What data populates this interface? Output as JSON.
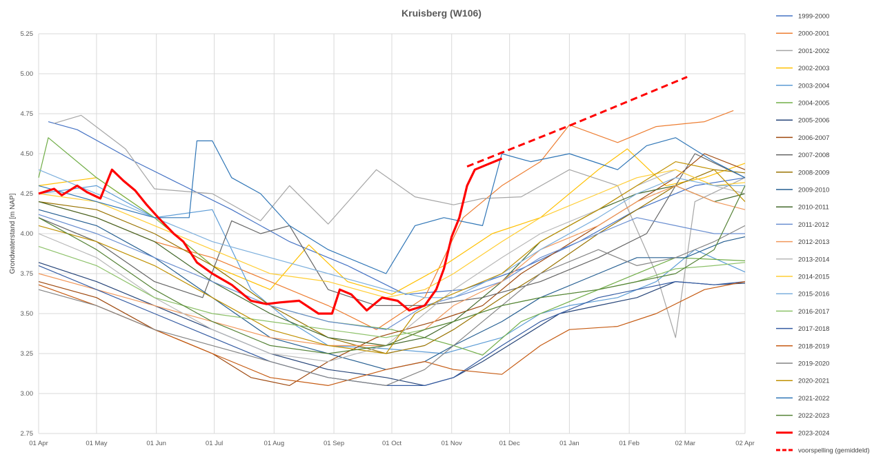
{
  "chart_data": {
    "type": "line",
    "title": "Kruisberg (W106)",
    "xlabel": "",
    "ylabel": "Grondwaterstand [m NAP]",
    "ylim": [
      2.75,
      5.25
    ],
    "yticks": [
      "5.25",
      "5.00",
      "4.75",
      "4.50",
      "4.25",
      "4.00",
      "3.75",
      "3.50",
      "3.25",
      "3.00",
      "2.75"
    ],
    "xlim_days": [
      0,
      366
    ],
    "xticks": [
      {
        "day": 0,
        "label": "01 Apr"
      },
      {
        "day": 30,
        "label": "01 May"
      },
      {
        "day": 61,
        "label": "01 Jun"
      },
      {
        "day": 91,
        "label": "01 Jul"
      },
      {
        "day": 122,
        "label": "01 Aug"
      },
      {
        "day": 153,
        "label": "01 Sep"
      },
      {
        "day": 183,
        "label": "01 Oct"
      },
      {
        "day": 214,
        "label": "01 Nov"
      },
      {
        "day": 244,
        "label": "01 Dec"
      },
      {
        "day": 275,
        "label": "01 Jan"
      },
      {
        "day": 306,
        "label": "01 Feb"
      },
      {
        "day": 335,
        "label": "02 Mar"
      },
      {
        "day": 366,
        "label": "02 Apr"
      }
    ],
    "grid": true,
    "legend_position": "right",
    "series": [
      {
        "name": "1999-2000",
        "color": "#4472C4",
        "dash": false,
        "width": 1.2,
        "x": [
          5,
          20,
          50,
          75,
          100,
          130,
          160,
          190,
          220,
          250,
          280,
          310,
          340,
          366
        ],
        "y": [
          4.7,
          4.65,
          4.45,
          4.3,
          4.15,
          3.95,
          3.8,
          3.62,
          3.65,
          3.78,
          3.95,
          4.15,
          4.3,
          4.35
        ]
      },
      {
        "name": "2000-2001",
        "color": "#ED7D31",
        "dash": false,
        "width": 1.2,
        "x": [
          0,
          30,
          60,
          90,
          120,
          150,
          175,
          200,
          220,
          240,
          260,
          275,
          300,
          320,
          345,
          360
        ],
        "y": [
          4.2,
          4.1,
          3.95,
          3.85,
          3.7,
          3.55,
          3.4,
          3.6,
          4.1,
          4.3,
          4.45,
          4.68,
          4.57,
          4.67,
          4.7,
          4.77
        ]
      },
      {
        "name": "2001-2002",
        "color": "#A5A5A5",
        "dash": false,
        "width": 1.2,
        "x": [
          8,
          22,
          45,
          60,
          90,
          115,
          130,
          150,
          175,
          195,
          215,
          230,
          250,
          275,
          300,
          320,
          330,
          340,
          366
        ],
        "y": [
          4.69,
          4.74,
          4.53,
          4.28,
          4.25,
          4.08,
          4.3,
          4.06,
          4.4,
          4.23,
          4.18,
          4.22,
          4.23,
          4.4,
          4.3,
          3.75,
          3.35,
          4.2,
          4.35
        ]
      },
      {
        "name": "2002-2003",
        "color": "#FFC000",
        "dash": false,
        "width": 1.2,
        "x": [
          0,
          30,
          60,
          90,
          120,
          140,
          160,
          183,
          210,
          235,
          260,
          290,
          305,
          325,
          345,
          366
        ],
        "y": [
          4.3,
          4.35,
          4.1,
          3.8,
          3.65,
          3.93,
          3.7,
          3.62,
          3.8,
          4.0,
          4.1,
          4.4,
          4.53,
          4.3,
          4.35,
          4.44
        ]
      },
      {
        "name": "2003-2004",
        "color": "#5B9BD5",
        "dash": false,
        "width": 1.2,
        "x": [
          0,
          30,
          60,
          90,
          110,
          130,
          150,
          180,
          210,
          240,
          260,
          275,
          300,
          320,
          340,
          366
        ],
        "y": [
          4.25,
          4.3,
          4.1,
          4.15,
          3.65,
          3.45,
          3.3,
          3.28,
          3.25,
          3.35,
          3.5,
          3.55,
          3.6,
          3.7,
          3.9,
          3.76
        ]
      },
      {
        "name": "2004-2005",
        "color": "#70AD47",
        "dash": false,
        "width": 1.2,
        "x": [
          0,
          5,
          30,
          60,
          90,
          120,
          150,
          183,
          200,
          215,
          230,
          250,
          270,
          300,
          330,
          366
        ],
        "y": [
          4.35,
          4.6,
          4.35,
          4.1,
          3.8,
          3.55,
          3.45,
          3.4,
          3.35,
          3.3,
          3.24,
          3.45,
          3.55,
          3.7,
          3.85,
          3.83
        ]
      },
      {
        "name": "2005-2006",
        "color": "#264478",
        "dash": false,
        "width": 1.2,
        "x": [
          0,
          30,
          60,
          90,
          120,
          150,
          180,
          200,
          215,
          230,
          250,
          270,
          290,
          310,
          330,
          350,
          366
        ],
        "y": [
          3.82,
          3.7,
          3.55,
          3.4,
          3.25,
          3.15,
          3.1,
          3.05,
          3.1,
          3.2,
          3.35,
          3.5,
          3.55,
          3.6,
          3.7,
          3.68,
          3.69
        ]
      },
      {
        "name": "2006-2007",
        "color": "#9E480E",
        "dash": false,
        "width": 1.2,
        "x": [
          0,
          30,
          60,
          90,
          110,
          130,
          150,
          175,
          190,
          205,
          230,
          250,
          270,
          290,
          310,
          330,
          345,
          366
        ],
        "y": [
          3.7,
          3.6,
          3.4,
          3.25,
          3.1,
          3.05,
          3.2,
          3.35,
          3.4,
          3.45,
          3.55,
          3.75,
          3.9,
          4.05,
          4.2,
          4.35,
          4.5,
          4.4
        ]
      },
      {
        "name": "2007-2008",
        "color": "#636363",
        "dash": false,
        "width": 1.2,
        "x": [
          0,
          30,
          60,
          85,
          100,
          115,
          130,
          150,
          175,
          200,
          230,
          260,
          290,
          315,
          340,
          366
        ],
        "y": [
          4.1,
          3.95,
          3.7,
          3.6,
          4.08,
          4.0,
          4.05,
          3.65,
          3.55,
          3.55,
          3.6,
          3.7,
          3.85,
          4.0,
          4.5,
          4.35
        ]
      },
      {
        "name": "2008-2009",
        "color": "#997300",
        "dash": false,
        "width": 1.2,
        "x": [
          0,
          30,
          60,
          90,
          120,
          150,
          180,
          200,
          215,
          240,
          260,
          290,
          310,
          330,
          350,
          366
        ],
        "y": [
          4.2,
          4.15,
          4.0,
          3.8,
          3.55,
          3.35,
          3.25,
          3.3,
          3.4,
          3.6,
          3.75,
          4.0,
          4.15,
          4.3,
          4.4,
          4.38
        ]
      },
      {
        "name": "2009-2010",
        "color": "#255E91",
        "dash": false,
        "width": 1.2,
        "x": [
          0,
          30,
          60,
          90,
          120,
          150,
          180,
          200,
          215,
          240,
          260,
          290,
          310,
          335,
          355,
          366
        ],
        "y": [
          4.15,
          4.05,
          3.85,
          3.6,
          3.35,
          3.25,
          3.15,
          3.2,
          3.3,
          3.45,
          3.6,
          3.75,
          3.85,
          3.85,
          3.95,
          3.98
        ]
      },
      {
        "name": "2010-2011",
        "color": "#43682B",
        "dash": false,
        "width": 1.2,
        "x": [
          0,
          30,
          60,
          90,
          120,
          150,
          180,
          200,
          215,
          240,
          260,
          290,
          310,
          330,
          350,
          366
        ],
        "y": [
          4.2,
          4.1,
          3.95,
          3.7,
          3.5,
          3.35,
          3.3,
          3.35,
          3.45,
          3.7,
          3.95,
          4.15,
          4.25,
          4.3,
          4.2,
          4.25
        ]
      },
      {
        "name": "2011-2012",
        "color": "#698ED0",
        "dash": false,
        "width": 1.2,
        "x": [
          0,
          30,
          60,
          90,
          120,
          150,
          180,
          200,
          215,
          240,
          260,
          290,
          310,
          330,
          350,
          366
        ],
        "y": [
          4.12,
          4.0,
          3.85,
          3.7,
          3.55,
          3.45,
          3.4,
          3.55,
          3.6,
          3.7,
          3.85,
          4.0,
          4.1,
          4.05,
          4.0,
          4.0
        ]
      },
      {
        "name": "2012-2013",
        "color": "#F1975A",
        "dash": false,
        "width": 1.2,
        "x": [
          0,
          30,
          60,
          90,
          120,
          150,
          180,
          200,
          215,
          240,
          260,
          290,
          310,
          330,
          350,
          366
        ],
        "y": [
          3.75,
          3.65,
          3.55,
          3.45,
          3.35,
          3.3,
          3.3,
          3.4,
          3.55,
          3.7,
          3.9,
          4.05,
          4.2,
          4.3,
          4.2,
          4.15
        ]
      },
      {
        "name": "2013-2014",
        "color": "#B7B7B7",
        "dash": false,
        "width": 1.2,
        "x": [
          0,
          30,
          60,
          90,
          120,
          150,
          180,
          200,
          215,
          240,
          260,
          290,
          310,
          330,
          350,
          366
        ],
        "y": [
          4.0,
          3.85,
          3.6,
          3.4,
          3.25,
          3.2,
          3.3,
          3.5,
          3.65,
          3.85,
          4.0,
          4.15,
          4.3,
          4.4,
          4.3,
          4.25
        ]
      },
      {
        "name": "2014-2015",
        "color": "#FFCD33",
        "dash": false,
        "width": 1.2,
        "x": [
          0,
          30,
          60,
          90,
          120,
          150,
          180,
          200,
          215,
          240,
          260,
          290,
          310,
          330,
          350,
          366
        ],
        "y": [
          4.25,
          4.2,
          4.05,
          3.9,
          3.75,
          3.7,
          3.6,
          3.65,
          3.75,
          3.95,
          4.1,
          4.25,
          4.35,
          4.4,
          4.3,
          4.32
        ]
      },
      {
        "name": "2015-2016",
        "color": "#7CAFDD",
        "dash": false,
        "width": 1.2,
        "x": [
          0,
          30,
          60,
          90,
          120,
          150,
          180,
          200,
          215,
          240,
          260,
          290,
          310,
          330,
          350,
          366
        ],
        "y": [
          4.4,
          4.25,
          4.1,
          3.95,
          3.85,
          3.75,
          3.65,
          3.6,
          3.6,
          3.75,
          3.9,
          4.1,
          4.25,
          4.35,
          4.3,
          4.3
        ]
      },
      {
        "name": "2016-2017",
        "color": "#8CC168",
        "dash": false,
        "width": 1.2,
        "x": [
          0,
          30,
          60,
          90,
          120,
          150,
          180,
          200,
          215,
          240,
          260,
          290,
          310,
          330,
          350,
          366
        ],
        "y": [
          3.92,
          3.8,
          3.6,
          3.5,
          3.45,
          3.4,
          3.35,
          3.4,
          3.45,
          3.55,
          3.6,
          3.65,
          3.7,
          3.78,
          3.8,
          3.82
        ]
      },
      {
        "name": "2017-2018",
        "color": "#335AA1",
        "dash": false,
        "width": 1.2,
        "x": [
          0,
          30,
          60,
          90,
          120,
          150,
          180,
          200,
          215,
          240,
          260,
          290,
          310,
          330,
          350,
          366
        ],
        "y": [
          3.8,
          3.65,
          3.5,
          3.35,
          3.2,
          3.1,
          3.05,
          3.05,
          3.1,
          3.3,
          3.45,
          3.6,
          3.65,
          3.7,
          3.68,
          3.7
        ]
      },
      {
        "name": "2018-2019",
        "color": "#C55A11",
        "dash": false,
        "width": 1.2,
        "x": [
          0,
          30,
          60,
          90,
          120,
          150,
          180,
          200,
          215,
          240,
          260,
          275,
          300,
          320,
          345,
          366
        ],
        "y": [
          3.68,
          3.55,
          3.4,
          3.25,
          3.1,
          3.05,
          3.15,
          3.2,
          3.15,
          3.12,
          3.3,
          3.4,
          3.42,
          3.5,
          3.65,
          3.7
        ]
      },
      {
        "name": "2019-2020",
        "color": "#848484",
        "dash": false,
        "width": 1.2,
        "x": [
          0,
          30,
          60,
          90,
          120,
          150,
          180,
          200,
          215,
          240,
          260,
          290,
          310,
          330,
          350,
          366
        ],
        "y": [
          3.65,
          3.55,
          3.4,
          3.3,
          3.2,
          3.1,
          3.05,
          3.15,
          3.3,
          3.55,
          3.75,
          3.9,
          3.8,
          3.85,
          3.95,
          4.05
        ]
      },
      {
        "name": "2020-2021",
        "color": "#BF9000",
        "dash": false,
        "width": 1.2,
        "x": [
          0,
          30,
          60,
          90,
          120,
          150,
          180,
          195,
          210,
          240,
          260,
          290,
          310,
          330,
          350,
          366
        ],
        "y": [
          4.05,
          3.95,
          3.8,
          3.6,
          3.4,
          3.3,
          3.25,
          3.5,
          3.6,
          3.75,
          3.95,
          4.15,
          4.3,
          4.45,
          4.4,
          4.2
        ]
      },
      {
        "name": "2021-2022",
        "color": "#2E75B6",
        "dash": false,
        "width": 1.2,
        "x": [
          0,
          30,
          60,
          78,
          82,
          90,
          100,
          115,
          130,
          150,
          180,
          195,
          210,
          230,
          240,
          255,
          275,
          300,
          315,
          330,
          350,
          366
        ],
        "y": [
          4.3,
          4.2,
          4.1,
          4.1,
          4.58,
          4.58,
          4.35,
          4.25,
          4.05,
          3.9,
          3.75,
          4.05,
          4.1,
          4.05,
          4.5,
          4.45,
          4.5,
          4.4,
          4.55,
          4.6,
          4.45,
          4.35
        ]
      },
      {
        "name": "2022-2023",
        "color": "#548235",
        "dash": false,
        "width": 1.2,
        "x": [
          0,
          30,
          60,
          90,
          120,
          150,
          180,
          200,
          215,
          240,
          260,
          290,
          310,
          330,
          350,
          366
        ],
        "y": [
          4.1,
          3.9,
          3.65,
          3.45,
          3.3,
          3.25,
          3.3,
          3.4,
          3.45,
          3.55,
          3.6,
          3.65,
          3.7,
          3.75,
          3.9,
          4.3
        ]
      },
      {
        "name": "2023-2024",
        "color": "#FF0000",
        "dash": false,
        "width": 3.2,
        "x": [
          0,
          8,
          12,
          20,
          25,
          32,
          38,
          44,
          50,
          56,
          62,
          70,
          75,
          82,
          90,
          100,
          110,
          118,
          125,
          135,
          145,
          152,
          156,
          162,
          170,
          178,
          186,
          192,
          200,
          206,
          210,
          214,
          218,
          222,
          226,
          232,
          236,
          240
        ],
        "y": [
          4.25,
          4.28,
          4.24,
          4.3,
          4.26,
          4.22,
          4.4,
          4.33,
          4.27,
          4.18,
          4.1,
          4.0,
          3.95,
          3.82,
          3.75,
          3.68,
          3.58,
          3.56,
          3.57,
          3.58,
          3.5,
          3.5,
          3.65,
          3.62,
          3.52,
          3.6,
          3.58,
          3.52,
          3.55,
          3.65,
          3.78,
          3.98,
          4.1,
          4.3,
          4.4,
          4.43,
          4.45,
          4.47
        ]
      },
      {
        "name": "voorspelling (gemiddeld)",
        "color": "#FF0000",
        "dash": true,
        "width": 3,
        "x": [
          222,
          276,
          336
        ],
        "y": [
          4.42,
          4.68,
          4.98
        ]
      }
    ]
  }
}
